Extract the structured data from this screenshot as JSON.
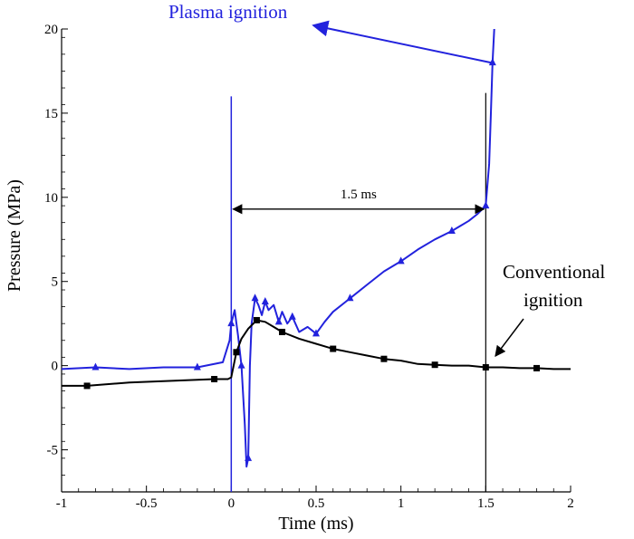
{
  "chart_data": {
    "type": "line",
    "xlabel": "Time (ms)",
    "ylabel": "Pressure (MPa)",
    "xlim": [
      -1,
      2
    ],
    "ylim": [
      -7.5,
      20
    ],
    "x_ticks": [
      -1,
      -0.5,
      0,
      0.5,
      1,
      1.5,
      2
    ],
    "x_tick_labels": [
      "-1",
      "-0.5",
      "0",
      "0.5",
      "1",
      "1.5",
      "2"
    ],
    "y_ticks": [
      -5,
      0,
      5,
      10,
      15,
      20
    ],
    "y_tick_labels": [
      "-5",
      "0",
      "5",
      "10",
      "15",
      "20"
    ],
    "grid": false,
    "series": [
      {
        "name": "Plasma ignition",
        "color": "#2222dd",
        "marker": "triangle",
        "x": [
          -1.0,
          -0.8,
          -0.6,
          -0.4,
          -0.2,
          -0.05,
          -0.01,
          0.0,
          0.02,
          0.04,
          0.06,
          0.08,
          0.09,
          0.1,
          0.11,
          0.12,
          0.14,
          0.16,
          0.18,
          0.2,
          0.22,
          0.25,
          0.28,
          0.3,
          0.33,
          0.36,
          0.4,
          0.45,
          0.5,
          0.55,
          0.6,
          0.7,
          0.8,
          0.9,
          1.0,
          1.1,
          1.2,
          1.3,
          1.4,
          1.45,
          1.5,
          1.52,
          1.53,
          1.54,
          1.55
        ],
        "y": [
          -0.2,
          -0.1,
          -0.2,
          -0.1,
          -0.1,
          0.2,
          1.5,
          2.5,
          3.3,
          1.8,
          0.0,
          -3.5,
          -6.0,
          -5.5,
          0.0,
          2.5,
          4.0,
          3.6,
          3.0,
          3.8,
          3.3,
          3.6,
          2.6,
          3.2,
          2.5,
          2.9,
          2.0,
          2.3,
          1.9,
          2.6,
          3.2,
          4.0,
          4.8,
          5.6,
          6.2,
          6.9,
          7.5,
          8.0,
          8.6,
          9.0,
          9.5,
          12.0,
          15.0,
          18.0,
          20.0
        ]
      },
      {
        "name": "Conventional ignition",
        "color": "#000000",
        "marker": "square",
        "x": [
          -1.0,
          -0.85,
          -0.6,
          -0.35,
          -0.1,
          -0.02,
          0.0,
          0.03,
          0.06,
          0.1,
          0.15,
          0.2,
          0.25,
          0.3,
          0.4,
          0.5,
          0.6,
          0.7,
          0.8,
          0.9,
          1.0,
          1.1,
          1.2,
          1.3,
          1.4,
          1.5,
          1.6,
          1.7,
          1.8,
          1.9,
          2.0
        ],
        "y": [
          -1.2,
          -1.2,
          -1.0,
          -0.9,
          -0.8,
          -0.8,
          -0.7,
          0.8,
          1.6,
          2.2,
          2.7,
          2.6,
          2.3,
          2.0,
          1.6,
          1.3,
          1.0,
          0.8,
          0.6,
          0.4,
          0.3,
          0.1,
          0.05,
          0.0,
          0.0,
          -0.1,
          -0.1,
          -0.15,
          -0.15,
          -0.2,
          -0.2
        ]
      }
    ],
    "annotations": {
      "plasma_label": "Plasma ignition",
      "plasma_label_color": "#2222dd",
      "conventional_label_line1": "Conventional",
      "conventional_label_line2": "ignition",
      "interval_label": "1.5 ms",
      "interval_start": 0,
      "interval_end": 1.5,
      "interval_y": 9.3,
      "vline_plasma_x": 0,
      "vline_conventional_x": 1.5
    }
  }
}
